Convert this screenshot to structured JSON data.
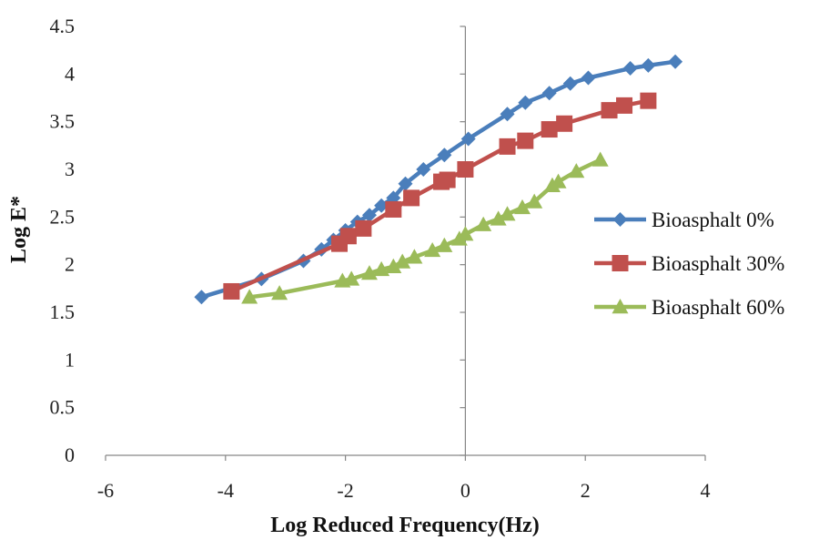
{
  "chart_data": {
    "type": "line",
    "xlabel": "Log Reduced Frequency(Hz)",
    "ylabel": "Log E*",
    "xlim": [
      -6,
      4
    ],
    "ylim": [
      0,
      4.5
    ],
    "xticks": [
      "-6",
      "-4",
      "-2",
      "0",
      "2",
      "4"
    ],
    "yticks": [
      "0",
      "0.5",
      "1",
      "1.5",
      "2",
      "2.5",
      "3",
      "3.5",
      "4",
      "4.5"
    ],
    "grid": false,
    "legend_position": "right",
    "series": [
      {
        "name": "Bioasphalt 0%",
        "color": "#4a7ebb",
        "marker": "diamond",
        "points": [
          [
            -4.4,
            1.66
          ],
          [
            -3.4,
            1.85
          ],
          [
            -2.7,
            2.04
          ],
          [
            -2.4,
            2.16
          ],
          [
            -2.2,
            2.26
          ],
          [
            -2.0,
            2.36
          ],
          [
            -1.8,
            2.45
          ],
          [
            -1.6,
            2.52
          ],
          [
            -1.4,
            2.62
          ],
          [
            -1.2,
            2.7
          ],
          [
            -1.0,
            2.85
          ],
          [
            -0.7,
            3.0
          ],
          [
            -0.35,
            3.15
          ],
          [
            0.05,
            3.32
          ],
          [
            0.7,
            3.58
          ],
          [
            1.0,
            3.7
          ],
          [
            1.4,
            3.8
          ],
          [
            1.75,
            3.9
          ],
          [
            2.05,
            3.96
          ],
          [
            2.75,
            4.06
          ],
          [
            3.05,
            4.09
          ],
          [
            3.5,
            4.13
          ]
        ]
      },
      {
        "name": "Bioasphalt 30%",
        "color": "#c0504d",
        "marker": "square",
        "points": [
          [
            -3.9,
            1.72
          ],
          [
            -2.1,
            2.22
          ],
          [
            -1.95,
            2.3
          ],
          [
            -1.7,
            2.38
          ],
          [
            -1.2,
            2.58
          ],
          [
            -0.9,
            2.7
          ],
          [
            -0.4,
            2.87
          ],
          [
            -0.3,
            2.89
          ],
          [
            0.0,
            3.0
          ],
          [
            0.7,
            3.24
          ],
          [
            1.0,
            3.3
          ],
          [
            1.4,
            3.42
          ],
          [
            1.65,
            3.48
          ],
          [
            2.4,
            3.62
          ],
          [
            2.65,
            3.67
          ],
          [
            3.05,
            3.72
          ]
        ]
      },
      {
        "name": "Bioasphalt 60%",
        "color": "#9bbb59",
        "marker": "triangle",
        "points": [
          [
            -3.6,
            1.66
          ],
          [
            -3.1,
            1.7
          ],
          [
            -2.05,
            1.83
          ],
          [
            -1.9,
            1.85
          ],
          [
            -1.6,
            1.91
          ],
          [
            -1.4,
            1.95
          ],
          [
            -1.2,
            1.98
          ],
          [
            -1.05,
            2.03
          ],
          [
            -0.85,
            2.08
          ],
          [
            -0.55,
            2.15
          ],
          [
            -0.35,
            2.2
          ],
          [
            -0.1,
            2.27
          ],
          [
            0.0,
            2.32
          ],
          [
            0.3,
            2.42
          ],
          [
            0.55,
            2.48
          ],
          [
            0.7,
            2.53
          ],
          [
            0.95,
            2.6
          ],
          [
            1.15,
            2.66
          ],
          [
            1.45,
            2.83
          ],
          [
            1.55,
            2.87
          ],
          [
            1.85,
            2.98
          ],
          [
            2.25,
            3.1
          ]
        ]
      }
    ]
  }
}
